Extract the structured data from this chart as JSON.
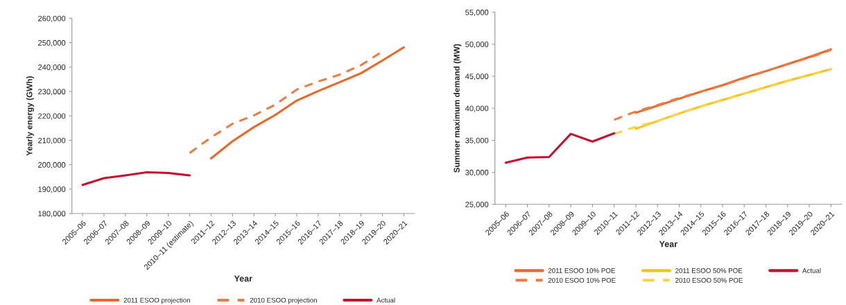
{
  "chart_data": [
    {
      "type": "line",
      "xlabel": "Year",
      "ylabel": "Yearly energy (GWh)",
      "categories": [
        "2005–06",
        "2006–07",
        "2007–08",
        "2008–09",
        "2009–10",
        "2010–11 (estimate)",
        "2011–12",
        "2012–13",
        "2013–14",
        "2014–15",
        "2015–16",
        "2016–17",
        "2017–18",
        "2018–19",
        "2019–20",
        "2020–21"
      ],
      "ylim": [
        180000,
        260000
      ],
      "yticks": [
        {
          "value": 180000,
          "label": "180,000"
        },
        {
          "value": 190000,
          "label": "190,000"
        },
        {
          "value": 200000,
          "label": "200,000"
        },
        {
          "value": 210000,
          "label": "210,000"
        },
        {
          "value": 220000,
          "label": "220,000"
        },
        {
          "value": 230000,
          "label": "230,000"
        },
        {
          "value": 240000,
          "label": "240,000"
        },
        {
          "value": 250000,
          "label": "250,000"
        },
        {
          "value": 260000,
          "label": "260,000"
        }
      ],
      "grid": false,
      "legend": "bottom",
      "series": [
        {
          "name": "2011 ESOO projection",
          "color": "#f26522",
          "line_style": "solid",
          "values": [
            null,
            null,
            null,
            null,
            null,
            null,
            202600,
            209600,
            215400,
            220400,
            226300,
            230200,
            233800,
            237500,
            242700,
            248100
          ]
        },
        {
          "name": "2010 ESOO projection",
          "color": "#f37a3c",
          "line_style": "dashed",
          "values": [
            null,
            null,
            null,
            null,
            null,
            204800,
            211200,
            216800,
            220200,
            224600,
            230800,
            234100,
            236900,
            240800,
            246400,
            null
          ]
        },
        {
          "name": "Actual",
          "color": "#c8102e",
          "line_style": "solid",
          "values": [
            191700,
            194500,
            195600,
            196900,
            196600,
            195600,
            null,
            null,
            null,
            null,
            null,
            null,
            null,
            null,
            null,
            null
          ]
        }
      ]
    },
    {
      "type": "line",
      "xlabel": "Year",
      "ylabel": "Summer maximum demand (MW)",
      "categories": [
        "2005–06",
        "2006–07",
        "2007–08",
        "2008–09",
        "2009–10",
        "2010–11",
        "2011–12",
        "2012–13",
        "2013–14",
        "2014–15",
        "2015–16",
        "2016–17",
        "2017–18",
        "2018–19",
        "2019–20",
        "2020–21"
      ],
      "ylim": [
        25000,
        55000
      ],
      "yticks": [
        {
          "value": 25000,
          "label": "25,000"
        },
        {
          "value": 30000,
          "label": "30,000"
        },
        {
          "value": 35000,
          "label": "35,000"
        },
        {
          "value": 40000,
          "label": "40,000"
        },
        {
          "value": 45000,
          "label": "45,000"
        },
        {
          "value": 50000,
          "label": "50,000"
        },
        {
          "value": 55000,
          "label": "55,000"
        }
      ],
      "grid": false,
      "legend": "bottom",
      "series": [
        {
          "name": "2011 ESOO 10% POE",
          "color": "#f26522",
          "line_style": "solid",
          "values": [
            null,
            null,
            null,
            null,
            null,
            null,
            39300,
            40400,
            41500,
            42600,
            43600,
            44800,
            45800,
            46900,
            48000,
            49200
          ]
        },
        {
          "name": "2010 ESOO 10% POE",
          "color": "#f37a3c",
          "line_style": "dashed",
          "values": [
            null,
            null,
            null,
            null,
            null,
            38200,
            39500,
            40500,
            41600,
            42600,
            43600,
            44700,
            45800,
            46900,
            47900,
            49100
          ]
        },
        {
          "name": "2011 ESOO 50% POE",
          "color": "#ffc20e",
          "line_style": "solid",
          "values": [
            null,
            null,
            null,
            null,
            null,
            null,
            36800,
            38000,
            39200,
            40300,
            41300,
            42300,
            43300,
            44300,
            45200,
            46100
          ]
        },
        {
          "name": "2010 ESOO 50% POE",
          "color": "#ffd24d",
          "line_style": "dashed",
          "values": [
            null,
            null,
            null,
            null,
            null,
            36000,
            37100,
            38000,
            39200,
            40300,
            41300,
            42300,
            43300,
            44300,
            45200,
            46100
          ]
        },
        {
          "name": "Actual",
          "color": "#c8102e",
          "line_style": "solid",
          "values": [
            31500,
            32300,
            32400,
            36000,
            34800,
            36100,
            null,
            null,
            null,
            null,
            null,
            null,
            null,
            null,
            null,
            null
          ]
        }
      ]
    }
  ]
}
